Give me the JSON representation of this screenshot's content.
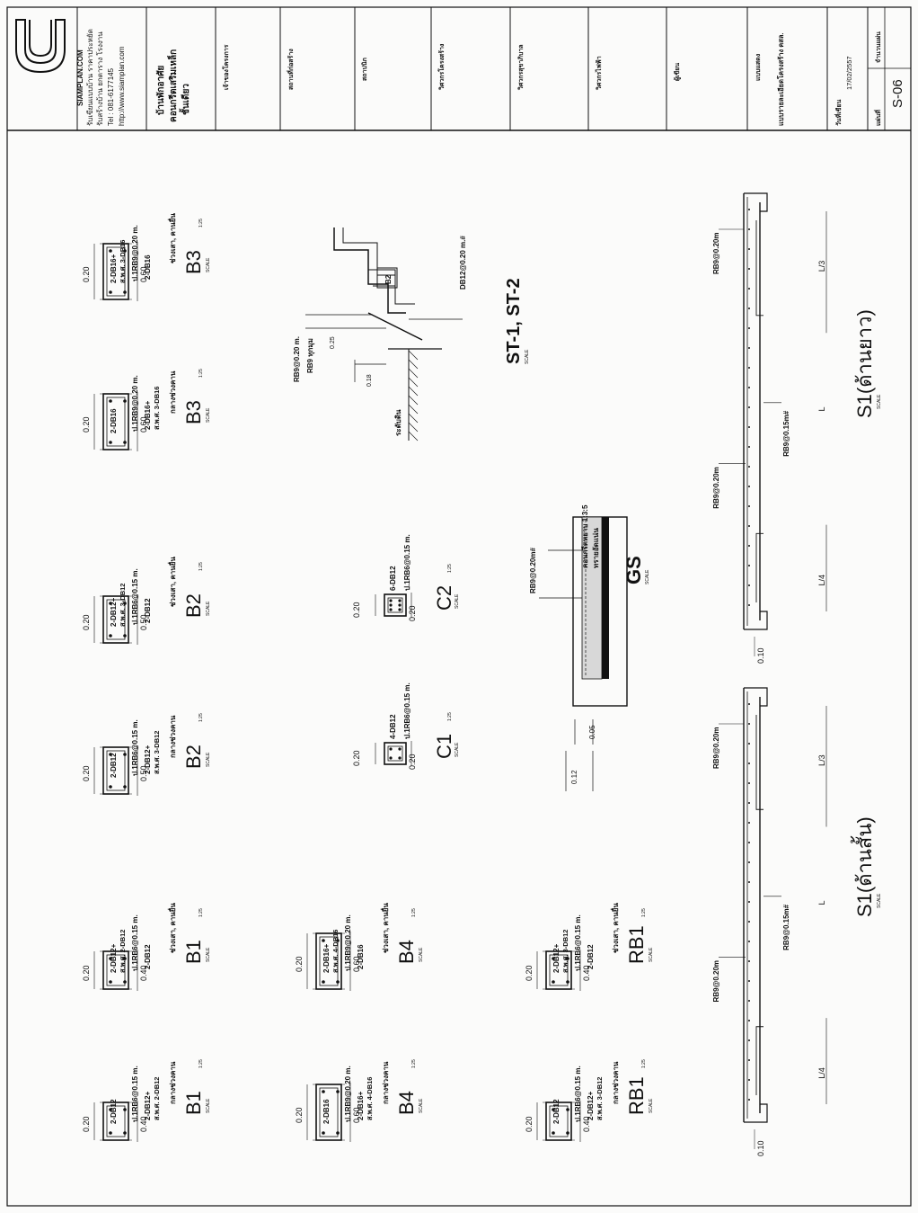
{
  "sheet": {
    "logo_text": "SIAMPLAN.COM",
    "company_line1": "รับเขียนแบบบ้าน ราคาประหยัด",
    "company_line2": "รับสร้างบ้าน ยกตาราง โรงงาน",
    "phone": "Tel : 081-6177145",
    "website": "http://www.siamplan.com",
    "project_line1": "บ้านพักอาศัย",
    "project_line2": "คอนกรีตเสริมเหล็ก",
    "project_line3": "ชั้นเดียว",
    "labels": {
      "owner": "เจ้าของโครงการ",
      "location": "สถานที่ก่อสร้าง",
      "architect": "สถาปนิก",
      "structural_engineer": "วิศวกรโครงสร้าง",
      "sanitary_engineer": "วิศวกรสุขาภิบาล",
      "electrical_engineer": "วิศวกรไฟฟ้า",
      "designer": "ผู้เขียน",
      "drawing_type": "แบบแสดง",
      "drawing_title": "แบบรายละเอียดโครงสร้าง คสล.",
      "date_label": "วันที่เขียน",
      "date": "17/02/2557",
      "sheet_no_label": "แผ่นที่",
      "sheet_count_label": "จำนวนแผ่น",
      "sheet_no": "S-06"
    }
  },
  "sections": {
    "scale_word": "SCALE",
    "scale": "1:25",
    "beams": [
      {
        "id": "B1a",
        "title": "B1",
        "width": "0.40",
        "depth": "0.20",
        "top": "2-DB12",
        "stirrup": "ป.1RB6@0.15 m.",
        "bottom": "2-DB12+",
        "bottom2": "ส.พ.ศ. 2-DB12",
        "loc": "กลางช่วงคาน"
      },
      {
        "id": "B1b",
        "title": "B1",
        "width": "0.40",
        "depth": "0.20",
        "top": "2-DB12+",
        "top2": "ส.พ.ศ. 2-DB12",
        "stirrup": "ป.1RB6@0.15 m.",
        "bottom": "2-DB12",
        "loc": "ช่วงเสา, คานยื่น"
      },
      {
        "id": "B2a",
        "title": "B2",
        "width": "0.50",
        "depth": "0.20",
        "top": "2-DB12",
        "stirrup": "ป.1RB6@0.15 m.",
        "bottom": "2-DB12+",
        "bottom2": "ส.พ.ศ. 3-DB12",
        "loc": "กลางช่วงคาน"
      },
      {
        "id": "B2b",
        "title": "B2",
        "width": "0.50",
        "depth": "0.20",
        "top": "2-DB12+",
        "top2": "ส.พ.ศ. 3-DB12",
        "stirrup": "ป.1RB6@0.15 m.",
        "bottom": "2-DB12",
        "loc": "ช่วงเสา, คานยื่น"
      },
      {
        "id": "B3a",
        "title": "B3",
        "width": "0.60",
        "depth": "0.20",
        "top": "2-DB16",
        "stirrup": "ป.1RB9@0.20 m.",
        "bottom": "2-DB16+",
        "bottom2": "ส.พ.ศ. 3-DB16",
        "loc": "กลางช่วงคาน"
      },
      {
        "id": "B3b",
        "title": "B3",
        "width": "0.60",
        "depth": "0.20",
        "top": "2-DB16+",
        "top2": "ส.พ.ศ. 3-DB16",
        "stirrup": "ป.1RB9@0.20 m.",
        "bottom": "2-DB16",
        "loc": "ช่วงเสา, คานยื่น"
      },
      {
        "id": "B4a",
        "title": "B4",
        "width": "0.60",
        "depth": "0.20",
        "top": "2-DB16",
        "stirrup": "ป.1RB9@0.20 m.",
        "bottom": "2-DB16+",
        "bottom2": "ส.พ.ศ. 4-DB16",
        "loc": "กลางช่วงคาน"
      },
      {
        "id": "B4b",
        "title": "B4",
        "width": "0.60",
        "depth": "0.20",
        "top": "2-DB16+",
        "top2": "ส.พ.ศ. 4-DB16",
        "stirrup": "ป.1RB9@0.20 m.",
        "bottom": "2-DB16",
        "loc": "ช่วงเสา, คานยื่น"
      },
      {
        "id": "RB1a",
        "title": "RB1",
        "width": "0.40",
        "depth": "0.20",
        "top": "2-DB12",
        "stirrup": "ป.1RB6@0.15 m.",
        "bottom": "2-DB12+",
        "bottom2": "ส.พ.ศ. 3-DB12",
        "loc": "กลางช่วงคาน"
      },
      {
        "id": "RB1b",
        "title": "RB1",
        "width": "0.40",
        "depth": "0.20",
        "top": "2-DB12+",
        "top2": "ส.พ.ศ. 3-DB12",
        "stirrup": "ป.1RB6@0.15 m.",
        "bottom": "2-DB12",
        "loc": "ช่วงเสา, คานยื่น"
      }
    ],
    "columns": [
      {
        "title": "C1",
        "width": "0.20",
        "depth": "0.20",
        "main": "4-DB12",
        "stirrup": "ป.1RB6@0.15 m."
      },
      {
        "title": "C2",
        "width": "0.20",
        "depth": "0.20",
        "main": "6-DB12",
        "stirrup": "ป.1RB6@0.15 m."
      }
    ],
    "stair": {
      "title": "ST-1, ST-2",
      "label_rb9": "RB9@0.20 m.",
      "label_rb9_corner": "RB9 ทุกมุม",
      "label_db12": "DB12@0.20 m.#",
      "label_b2": "B2",
      "label_rise": "0.25",
      "label_tread": "0.18",
      "label_ground": "ระดับดิน"
    },
    "ground_slab": {
      "title": "GS",
      "label_mesh": "RB9@0.20m#",
      "label_concrete": "คอนกรีตหยาบ 1:3:5",
      "label_sand": "ทรายอัดแน่น",
      "dim_thick": "0.05",
      "dim_slab": "0.12"
    },
    "slab_short": {
      "title": "S1(ด้านสั้น)",
      "rb9a": "RB9@0.20m",
      "rb9b": "RB9@0.20m",
      "mesh": "RB9@0.15m#",
      "l3": "L/3",
      "l": "L",
      "l4": "L/4",
      "dim": "0.10"
    },
    "slab_long": {
      "title": "S1(ด้านยาว)",
      "rb9a": "RB9@0.20m",
      "rb9b": "RB9@0.20m",
      "mesh": "RB9@0.15m#",
      "l3": "L/3",
      "l": "L",
      "l4": "L/4",
      "dim": "0.10"
    }
  }
}
